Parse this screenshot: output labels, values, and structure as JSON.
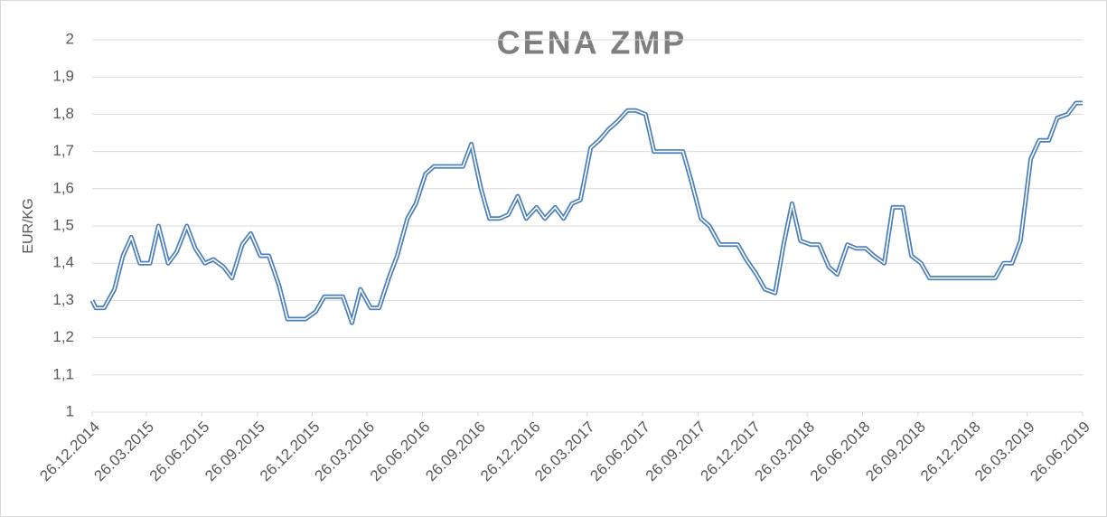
{
  "chart_data": {
    "type": "line",
    "title": "CENA ZMP",
    "y_label": "EUR/KG",
    "color": "#4a7ebb",
    "grid": true,
    "x": [
      "26.12.2014",
      "01.01.2015",
      "15.01.2015",
      "01.02.2015",
      "15.02.2015",
      "01.03.2015",
      "15.03.2015",
      "01.04.2015",
      "15.04.2015",
      "01.05.2015",
      "15.05.2015",
      "01.06.2015",
      "15.06.2015",
      "01.07.2015",
      "15.07.2015",
      "01.08.2015",
      "15.08.2015",
      "01.09.2015",
      "15.09.2015",
      "01.10.2015",
      "15.10.2015",
      "01.11.2015",
      "15.11.2015",
      "01.12.2015",
      "15.12.2015",
      "01.01.2016",
      "15.01.2016",
      "01.02.2016",
      "15.02.2016",
      "01.03.2016",
      "15.03.2016",
      "01.04.2016",
      "15.04.2016",
      "01.05.2016",
      "15.05.2016",
      "01.06.2016",
      "15.06.2016",
      "01.07.2016",
      "15.07.2016",
      "01.08.2016",
      "15.08.2016",
      "01.09.2016",
      "15.09.2016",
      "01.10.2016",
      "15.10.2016",
      "01.11.2016",
      "15.11.2016",
      "01.12.2016",
      "15.12.2016",
      "01.01.2017",
      "15.01.2017",
      "01.02.2017",
      "15.02.2017",
      "01.03.2017",
      "15.03.2017",
      "01.04.2017",
      "15.04.2017",
      "01.05.2017",
      "15.05.2017",
      "01.06.2017",
      "15.06.2017",
      "01.07.2017",
      "15.07.2017",
      "01.08.2017",
      "15.08.2017",
      "01.09.2017",
      "15.09.2017",
      "01.10.2017",
      "15.10.2017",
      "01.11.2017",
      "15.11.2017",
      "01.12.2017",
      "15.12.2017",
      "01.01.2018",
      "15.01.2018",
      "01.02.2018",
      "15.02.2018",
      "01.03.2018",
      "15.03.2018",
      "01.04.2018",
      "15.04.2018",
      "01.05.2018",
      "15.05.2018",
      "01.06.2018",
      "15.06.2018",
      "01.07.2018",
      "15.07.2018",
      "01.08.2018",
      "15.08.2018",
      "01.09.2018",
      "15.09.2018",
      "01.10.2018",
      "15.10.2018",
      "01.11.2018",
      "15.11.2018",
      "01.12.2018",
      "15.12.2018",
      "01.01.2019",
      "15.01.2019",
      "01.02.2019",
      "15.02.2019",
      "01.03.2019",
      "15.03.2019",
      "01.04.2019",
      "15.04.2019",
      "01.05.2019",
      "15.05.2019",
      "01.06.2019",
      "15.06.2019",
      "26.06.2019"
    ],
    "values": [
      1.3,
      1.28,
      1.28,
      1.33,
      1.42,
      1.47,
      1.4,
      1.4,
      1.5,
      1.4,
      1.43,
      1.5,
      1.44,
      1.4,
      1.41,
      1.39,
      1.36,
      1.45,
      1.48,
      1.42,
      1.42,
      1.34,
      1.25,
      1.25,
      1.25,
      1.27,
      1.31,
      1.31,
      1.31,
      1.24,
      1.33,
      1.28,
      1.28,
      1.36,
      1.42,
      1.52,
      1.56,
      1.64,
      1.66,
      1.66,
      1.66,
      1.66,
      1.72,
      1.6,
      1.52,
      1.52,
      1.53,
      1.58,
      1.52,
      1.55,
      1.52,
      1.55,
      1.52,
      1.56,
      1.57,
      1.71,
      1.73,
      1.76,
      1.78,
      1.81,
      1.81,
      1.8,
      1.7,
      1.7,
      1.7,
      1.7,
      1.62,
      1.52,
      1.5,
      1.45,
      1.45,
      1.45,
      1.41,
      1.37,
      1.33,
      1.32,
      1.45,
      1.56,
      1.46,
      1.45,
      1.45,
      1.39,
      1.37,
      1.45,
      1.44,
      1.44,
      1.42,
      1.4,
      1.55,
      1.55,
      1.42,
      1.4,
      1.36,
      1.36,
      1.36,
      1.36,
      1.36,
      1.36,
      1.36,
      1.36,
      1.4,
      1.4,
      1.46,
      1.68,
      1.73,
      1.73,
      1.79,
      1.8,
      1.83,
      1.83
    ],
    "xlim": [
      "26.12.2014",
      "26.06.2019"
    ],
    "xticks": [
      "26.12.2014",
      "26.03.2015",
      "26.06.2015",
      "26.09.2015",
      "26.12.2015",
      "26.03.2016",
      "26.06.2016",
      "26.09.2016",
      "26.12.2016",
      "26.03.2017",
      "26.06.2017",
      "26.09.2017",
      "26.12.2017",
      "26.03.2018",
      "26.06.2018",
      "26.09.2018",
      "26.12.2018",
      "26.03.2019",
      "26.06.2019"
    ],
    "ylim": [
      1,
      2
    ],
    "yticks": [
      1,
      {
        "value": 1.1,
        "label": "1,1"
      },
      {
        "value": 1.2,
        "label": "1,2"
      },
      {
        "value": 1.3,
        "label": "1,3"
      },
      {
        "value": 1.4,
        "label": "1,4"
      },
      {
        "value": 1.5,
        "label": "1,5"
      },
      {
        "value": 1.6,
        "label": "1,6"
      },
      {
        "value": 1.7,
        "label": "1,7"
      },
      {
        "value": 1.8,
        "label": "1,8"
      },
      {
        "value": 1.9,
        "label": "1,9"
      },
      2
    ]
  }
}
